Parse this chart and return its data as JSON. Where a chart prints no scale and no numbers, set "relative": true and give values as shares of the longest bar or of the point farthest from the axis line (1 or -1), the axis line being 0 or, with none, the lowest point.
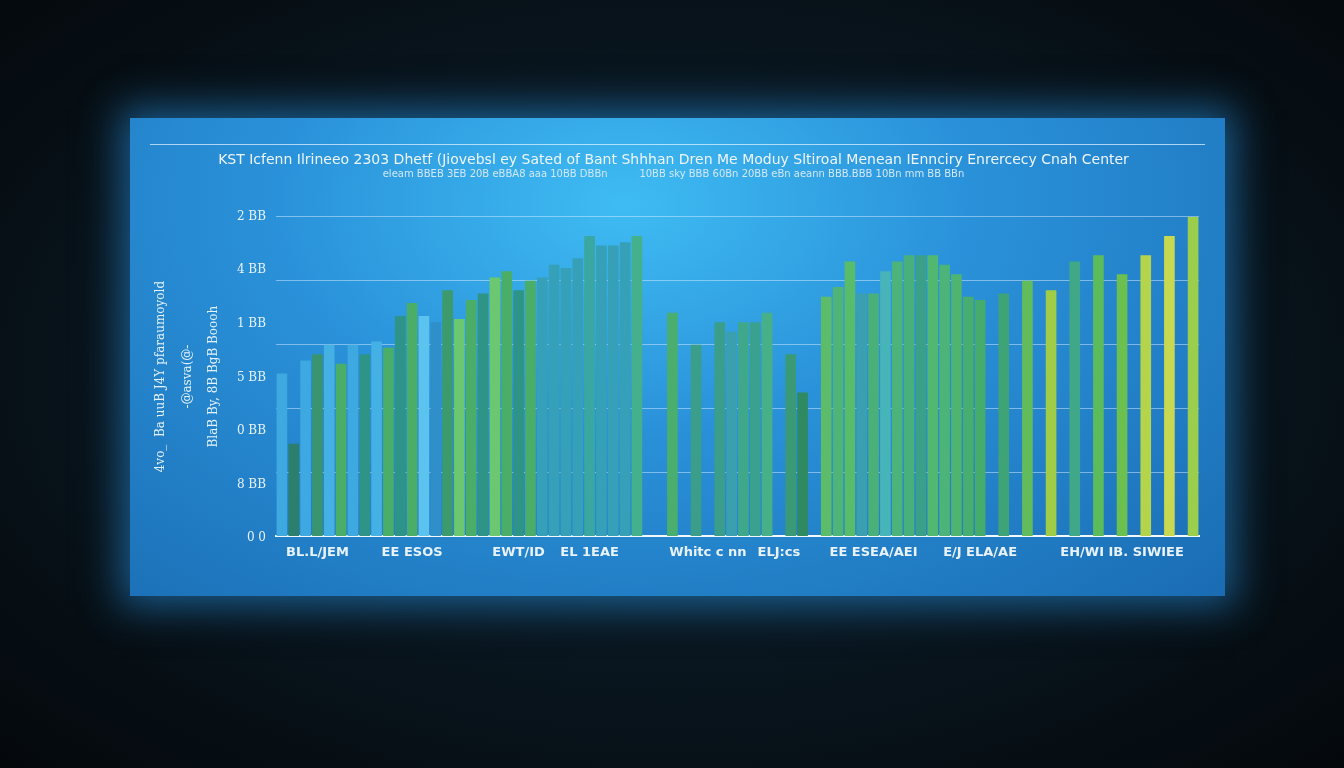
{
  "chart_data": {
    "type": "bar",
    "title": "KST Icfenn Ilrineeo 2303 Dhetf (Jiovebsl ey Sated of Bant Shhhan Dren Me Moduy Sltiroal Menean IEnnciry Enrercecy Cnah Center",
    "subtitle": "eleam BBEB 3EB 20B eBBA8 aaa 10BB DBBn          10BB sky BBB 60Bn 20BB eBn aeann BBB.BBB 10Bn mm BB BBn",
    "ylabel": "4vo_  Ba uuB J4Y pfaraumoyold\n-@asva(@-\nBlaB By, 8B BgB Boooh",
    "annotations": [
      "2 BB",
      "4 BB",
      "1 BB",
      "5 BB",
      "0 BB",
      "8 BB",
      "0 0"
    ],
    "categories": [
      null,
      null,
      null,
      "BL.L/JEM",
      null,
      null,
      null,
      null,
      null,
      null,
      null,
      "EE ESOS",
      null,
      null,
      null,
      null,
      null,
      null,
      null,
      null,
      "EWT/ID",
      null,
      null,
      null,
      null,
      null,
      "EL 1EAE",
      null,
      null,
      null,
      null,
      null,
      null,
      null,
      null,
      null,
      "Whitc c nn",
      null,
      null,
      null,
      null,
      null,
      "ELJ:cs",
      null,
      null,
      null,
      null,
      null,
      null,
      null,
      "EE ESEA/AEI",
      null,
      null,
      null,
      null,
      null,
      null,
      null,
      null,
      "E/J ELA/AE",
      null,
      null,
      null,
      null,
      null,
      null,
      null,
      null,
      null,
      null,
      null,
      "EH/WI IB. SIWIEE",
      null,
      null,
      null,
      null,
      null,
      null
    ],
    "values": [
      0.51,
      0.29,
      0.55,
      0.57,
      0.6,
      0.54,
      0.6,
      0.57,
      0.61,
      0.59,
      0.69,
      0.73,
      0.69,
      0.67,
      0.77,
      0.68,
      0.74,
      0.76,
      0.81,
      0.83,
      0.77,
      0.8,
      0.81,
      0.85,
      0.84,
      0.87,
      0.94,
      0.91,
      0.91,
      0.92,
      0.94,
      null,
      null,
      0.7,
      null,
      0.6,
      null,
      0.67,
      0.64,
      0.67,
      0.67,
      0.7,
      null,
      0.57,
      0.45,
      null,
      0.75,
      0.78,
      0.86,
      0.76,
      0.76,
      0.83,
      0.86,
      0.88,
      0.88,
      0.88,
      0.85,
      0.82,
      0.75,
      0.74,
      null,
      0.76,
      null,
      0.8,
      null,
      0.77,
      null,
      0.86,
      null,
      0.88,
      null,
      0.82,
      null,
      0.88,
      null,
      0.94,
      null,
      1
    ],
    "colors": [
      "#3ea8e0",
      "#2c7f6c",
      "#3ea8e0",
      "#3a9470",
      "#45b0e4",
      "#4aae68",
      "#3ea8e0",
      "#2f9488",
      "#45b0e4",
      "#4aae68",
      "#2f9488",
      "#4aae68",
      "#5cc2ee",
      "#2f8fc8",
      "#3c9a6c",
      "#6cc870",
      "#4aae68",
      "#2f9488",
      "#6cc870",
      "#4aae68",
      "#2f9488",
      "#4aae68",
      "#35a0b8",
      "#35a0b8",
      "#35a0b8",
      "#35a0b8",
      "#3aa8a0",
      "#35a0b8",
      "#35a0b8",
      "#35a0b8",
      "#44b08c",
      null,
      null,
      "#4aae6e",
      null,
      "#3a9e8a",
      null,
      "#3a9e8a",
      "#3aa0b0",
      "#40a88a",
      "#3aa090",
      "#48b088",
      null,
      "#3a9a78",
      "#2f8a62",
      null,
      "#5cbc6a",
      "#4eb478",
      "#58bc6a",
      "#3aa0b0",
      "#4ab07a",
      "#46b4b8",
      "#4cb47a",
      "#48b07a",
      "#3aa08a",
      "#50b870",
      "#4cb478",
      "#4eb470",
      "#48ae70",
      "#46ac6c",
      null,
      "#3ea478",
      null,
      "#62bc5c",
      null,
      "#a0cc48",
      null,
      "#40a888",
      null,
      "#5cbc5c",
      null,
      "#6cc050",
      null,
      "#b4d44c",
      null,
      "#c8d850",
      null,
      "#9cce4e"
    ],
    "relative": true,
    "grid": "y"
  }
}
